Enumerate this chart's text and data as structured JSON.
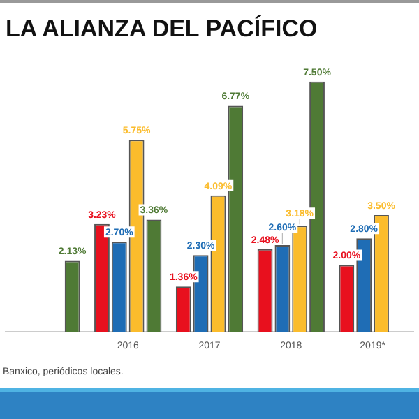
{
  "chart_data": {
    "type": "bar",
    "title": "LA ALIANZA DEL PACÍFICO",
    "categories": [
      null,
      "2016",
      "2017",
      "2018",
      "2019*"
    ],
    "series": [
      {
        "color": "#e8101e",
        "values": [
          null,
          3.23,
          1.36,
          2.48,
          2.0
        ],
        "value_labels": [
          null,
          "3.23%",
          "1.36%",
          "2.48%",
          "2.00%"
        ]
      },
      {
        "color": "#1f6db5",
        "values": [
          null,
          2.7,
          2.3,
          2.6,
          2.8
        ],
        "value_labels": [
          null,
          "2.70%",
          "2.30%",
          "2.60%",
          "2.80%"
        ]
      },
      {
        "color": "#fbbc2c",
        "values": [
          null,
          5.75,
          4.09,
          3.18,
          3.5
        ],
        "value_labels": [
          null,
          "5.75%",
          "4.09%",
          "3.18%",
          "3.50%"
        ]
      },
      {
        "color": "#4f7a35",
        "values": [
          2.13,
          3.36,
          6.77,
          7.5,
          null
        ],
        "value_labels": [
          "2.13%",
          "3.36%",
          "6.77%",
          "7.50%",
          null
        ]
      }
    ],
    "annotations": [
      "Banxico, periódicos locales."
    ],
    "grid": false,
    "legend": false
  }
}
